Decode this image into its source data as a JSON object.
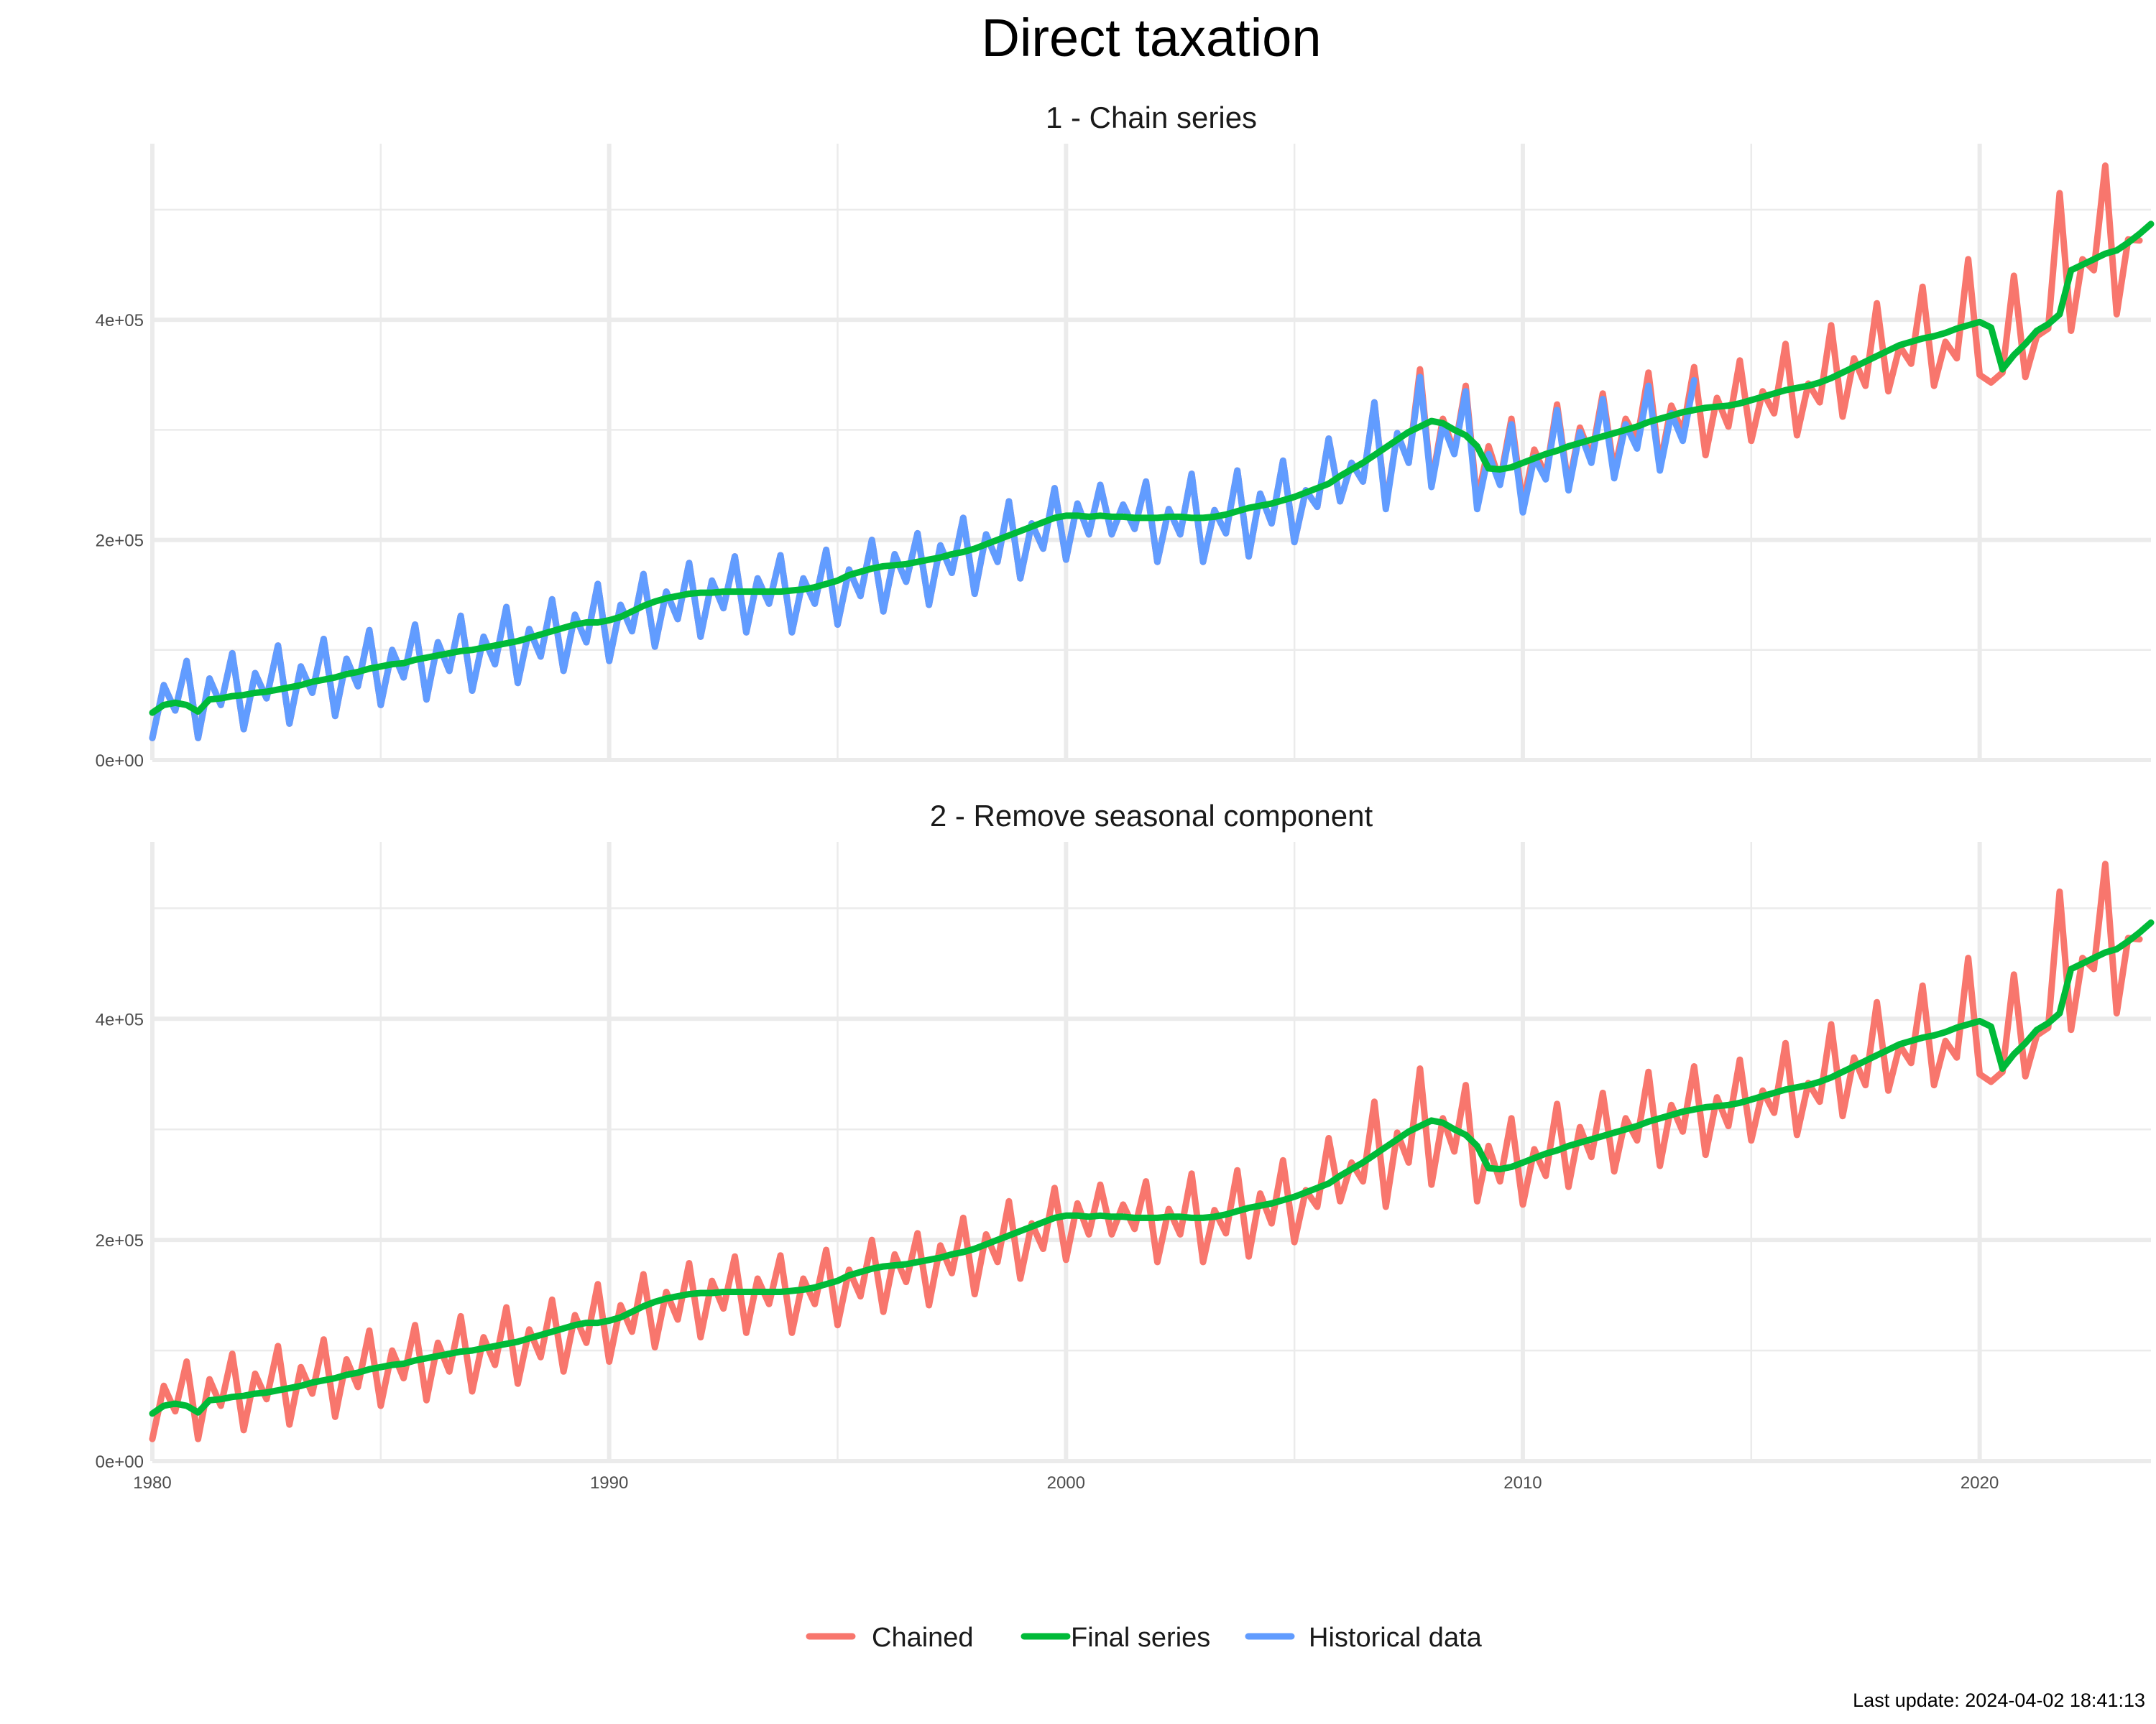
{
  "chart_data": {
    "type": "line",
    "title": "Direct taxation",
    "caption": "Last update: 2024-04-02 18:41:13",
    "legend": {
      "placement": "bottom",
      "entries": [
        {
          "name": "Chained",
          "color": "#F8766D"
        },
        {
          "name": "Final series",
          "color": "#00BA38"
        },
        {
          "name": "Historical data",
          "color": "#619CFF"
        }
      ]
    },
    "xlim": [
      1980,
      2023.75
    ],
    "ylim": [
      0,
      560000
    ],
    "x_ticks": [
      1980,
      1990,
      2000,
      2010,
      2020
    ],
    "x_tick_labels": [
      "1980",
      "1990",
      "2000",
      "2010",
      "2020"
    ],
    "y_ticks": [
      0,
      200000,
      400000
    ],
    "y_tick_labels": [
      "0e+00",
      "2e+05",
      "4e+05"
    ],
    "grid": true,
    "frequency": "quarterly",
    "start": 1980,
    "panels": [
      {
        "title": "1 - Chain series",
        "series": [
          "Chained",
          "Historical data",
          "Final series"
        ]
      },
      {
        "title": "2 - Remove seasonal component",
        "series": [
          "Chained",
          "Final series"
        ]
      }
    ],
    "series": [
      {
        "name": "Chained",
        "color": "#F8766D",
        "values": [
          20000,
          68000,
          45000,
          90000,
          20000,
          74000,
          50000,
          97000,
          28000,
          79000,
          56000,
          104000,
          33000,
          85000,
          61000,
          110000,
          40000,
          92000,
          67000,
          118000,
          50000,
          100000,
          75000,
          123000,
          55000,
          107000,
          81000,
          131000,
          63000,
          112000,
          87000,
          139000,
          70000,
          119000,
          94000,
          146000,
          81000,
          132000,
          107000,
          160000,
          90000,
          141000,
          117000,
          169000,
          103000,
          153000,
          128000,
          179000,
          112000,
          163000,
          138000,
          185000,
          116000,
          165000,
          142000,
          186000,
          116000,
          165000,
          142000,
          191000,
          123000,
          173000,
          149000,
          200000,
          135000,
          187000,
          162000,
          206000,
          141000,
          195000,
          170000,
          220000,
          151000,
          205000,
          180000,
          235000,
          165000,
          215000,
          192000,
          247000,
          182000,
          233000,
          205000,
          250000,
          205000,
          232000,
          210000,
          253000,
          180000,
          228000,
          205000,
          260000,
          180000,
          227000,
          206000,
          263000,
          185000,
          242000,
          215000,
          272000,
          198000,
          245000,
          230000,
          292000,
          235000,
          270000,
          253000,
          325000,
          230000,
          297000,
          270000,
          355000,
          250000,
          310000,
          280000,
          340000,
          235000,
          285000,
          253000,
          310000,
          232000,
          282000,
          258000,
          323000,
          248000,
          302000,
          275000,
          333000,
          262000,
          310000,
          290000,
          352000,
          267000,
          322000,
          298000,
          357000,
          277000,
          329000,
          303000,
          363000,
          290000,
          335000,
          315000,
          378000,
          295000,
          342000,
          325000,
          395000,
          312000,
          365000,
          340000,
          415000,
          335000,
          376000,
          360000,
          430000,
          340000,
          380000,
          365000,
          455000,
          350000,
          343000,
          352000,
          440000,
          348000,
          385000,
          392000,
          515000,
          390000,
          455000,
          445000,
          540000,
          405000,
          473000,
          472000
        ]
      },
      {
        "name": "Historical data",
        "color": "#619CFF",
        "values": [
          20000,
          68000,
          45000,
          90000,
          20000,
          74000,
          50000,
          97000,
          28000,
          79000,
          56000,
          104000,
          33000,
          85000,
          61000,
          110000,
          40000,
          92000,
          67000,
          118000,
          50000,
          100000,
          75000,
          123000,
          55000,
          107000,
          81000,
          131000,
          63000,
          112000,
          87000,
          139000,
          70000,
          119000,
          94000,
          146000,
          81000,
          132000,
          107000,
          160000,
          90000,
          141000,
          117000,
          169000,
          103000,
          153000,
          128000,
          179000,
          112000,
          163000,
          138000,
          185000,
          116000,
          165000,
          142000,
          186000,
          116000,
          165000,
          142000,
          191000,
          123000,
          173000,
          149000,
          200000,
          135000,
          187000,
          162000,
          206000,
          141000,
          195000,
          170000,
          220000,
          151000,
          205000,
          180000,
          235000,
          165000,
          215000,
          192000,
          247000,
          182000,
          233000,
          205000,
          250000,
          205000,
          232000,
          210000,
          253000,
          180000,
          228000,
          205000,
          260000,
          180000,
          227000,
          206000,
          263000,
          185000,
          242000,
          215000,
          272000,
          198000,
          245000,
          230000,
          292000,
          235000,
          270000,
          253000,
          325000,
          228000,
          297000,
          270000,
          348000,
          248000,
          305000,
          278000,
          335000,
          228000,
          278000,
          250000,
          305000,
          225000,
          275000,
          255000,
          318000,
          245000,
          298000,
          270000,
          328000,
          256000,
          305000,
          283000,
          340000,
          263000,
          315000,
          290000,
          345000
        ]
      },
      {
        "name": "Final series",
        "color": "#00BA38",
        "values": [
          43000,
          50000,
          52000,
          50000,
          44000,
          55000,
          56000,
          58000,
          59000,
          61000,
          62000,
          64000,
          66000,
          68000,
          71000,
          73000,
          75000,
          78000,
          80000,
          83000,
          85000,
          87000,
          88000,
          91000,
          93000,
          95000,
          97000,
          99000,
          100000,
          102000,
          104000,
          106000,
          108000,
          111000,
          114000,
          117000,
          120000,
          123000,
          125000,
          125000,
          127000,
          130000,
          135000,
          140000,
          144000,
          147000,
          149000,
          151000,
          152000,
          152000,
          153000,
          153000,
          153000,
          153000,
          153000,
          153000,
          154000,
          155000,
          157000,
          160000,
          163000,
          168000,
          171000,
          174000,
          176000,
          177000,
          178000,
          180000,
          182000,
          184000,
          187000,
          189000,
          192000,
          196000,
          200000,
          204000,
          208000,
          212000,
          216000,
          220000,
          222000,
          222000,
          221000,
          222000,
          221000,
          221000,
          220000,
          220000,
          220000,
          221000,
          221000,
          220000,
          220000,
          221000,
          223000,
          226000,
          229000,
          231000,
          233000,
          236000,
          239000,
          243000,
          247000,
          251000,
          258000,
          264000,
          270000,
          277000,
          284000,
          291000,
          298000,
          303000,
          308000,
          306000,
          300000,
          295000,
          285000,
          265000,
          264000,
          266000,
          270000,
          274000,
          278000,
          281000,
          285000,
          288000,
          291000,
          294000,
          297000,
          300000,
          303000,
          307000,
          310000,
          313000,
          316000,
          318000,
          320000,
          321000,
          322000,
          324000,
          327000,
          330000,
          333000,
          336000,
          338000,
          340000,
          343000,
          347000,
          352000,
          357000,
          362000,
          367000,
          372000,
          377000,
          380000,
          383000,
          385000,
          388000,
          392000,
          395000,
          398000,
          393000,
          355000,
          368000,
          378000,
          390000,
          396000,
          405000,
          445000,
          450000,
          455000,
          460000,
          463000,
          470000,
          478000,
          487000
        ]
      }
    ]
  }
}
